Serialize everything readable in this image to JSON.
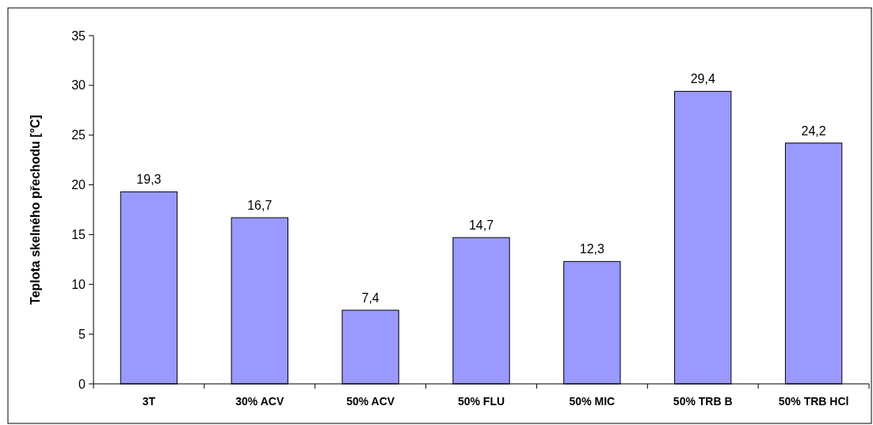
{
  "chart_data": {
    "type": "bar",
    "ylabel": "Teplota skelného přechodu [°C]",
    "categories": [
      "3T",
      "30% ACV",
      "50% ACV",
      "50% FLU",
      "50% MIC",
      "50% TRB B",
      "50% TRB HCl"
    ],
    "values": [
      19.3,
      16.7,
      7.4,
      14.7,
      12.3,
      29.4,
      24.2
    ],
    "value_labels": [
      "19,3",
      "16,7",
      "7,4",
      "14,7",
      "12,3",
      "29,4",
      "24,2"
    ],
    "color": "#9999ff",
    "ylim": [
      0,
      35
    ],
    "yticks": [
      0,
      5,
      10,
      15,
      20,
      25,
      30,
      35
    ],
    "grid": false
  }
}
